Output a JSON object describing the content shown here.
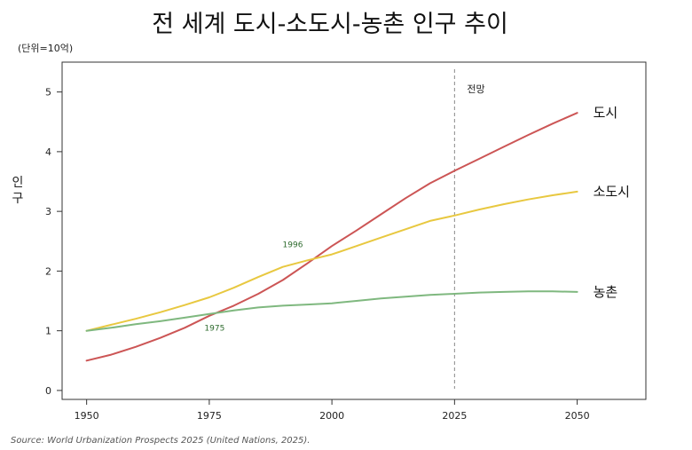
{
  "chart_data": {
    "type": "line",
    "title": "전 세계 도시-소도시-농촌 인구 추이",
    "unit_note": "(단위=10억)",
    "ylabel_chars": [
      "인",
      "구"
    ],
    "xlabel": "",
    "xlim": [
      1945,
      2064
    ],
    "ylim": [
      -0.15,
      5.5
    ],
    "xticks": [
      1950,
      1975,
      2000,
      2025,
      2050
    ],
    "yticks": [
      0,
      1,
      2,
      3,
      4,
      5
    ],
    "grid": false,
    "legend": "inline-right",
    "projection": {
      "x": 2025,
      "label": "전망"
    },
    "annotations": [
      {
        "text": "1975",
        "x": 1975,
        "y": 1.3
      },
      {
        "text": "1996",
        "x": 1996,
        "y": 2.25
      }
    ],
    "series": [
      {
        "name": "도시",
        "color": "#cc5555",
        "x": [
          1950,
          1955,
          1960,
          1965,
          1970,
          1975,
          1980,
          1985,
          1990,
          1995,
          2000,
          2005,
          2010,
          2015,
          2020,
          2025,
          2030,
          2035,
          2040,
          2045,
          2050
        ],
        "y": [
          0.5,
          0.6,
          0.73,
          0.88,
          1.05,
          1.25,
          1.42,
          1.62,
          1.85,
          2.13,
          2.42,
          2.68,
          2.95,
          3.22,
          3.47,
          3.68,
          3.88,
          4.08,
          4.28,
          4.47,
          4.65
        ]
      },
      {
        "name": "소도시",
        "color": "#e8c840",
        "x": [
          1950,
          1955,
          1960,
          1965,
          1970,
          1975,
          1980,
          1985,
          1990,
          1995,
          2000,
          2005,
          2010,
          2015,
          2020,
          2025,
          2030,
          2035,
          2040,
          2045,
          2050
        ],
        "y": [
          1.0,
          1.1,
          1.2,
          1.31,
          1.43,
          1.56,
          1.72,
          1.9,
          2.07,
          2.18,
          2.28,
          2.42,
          2.56,
          2.7,
          2.84,
          2.93,
          3.03,
          3.12,
          3.2,
          3.27,
          3.33
        ]
      },
      {
        "name": "농촌",
        "color": "#7fb87f",
        "x": [
          1950,
          1955,
          1960,
          1965,
          1970,
          1975,
          1980,
          1985,
          1990,
          1995,
          2000,
          2005,
          2010,
          2015,
          2020,
          2025,
          2030,
          2035,
          2040,
          2045,
          2050
        ],
        "y": [
          1.0,
          1.05,
          1.11,
          1.16,
          1.22,
          1.28,
          1.34,
          1.39,
          1.42,
          1.44,
          1.46,
          1.5,
          1.54,
          1.57,
          1.6,
          1.62,
          1.64,
          1.65,
          1.66,
          1.66,
          1.65
        ]
      }
    ],
    "source": "Source: World Urbanization Prospects 2025 (United Nations, 2025)."
  }
}
